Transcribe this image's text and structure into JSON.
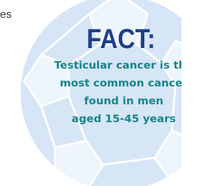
{
  "fragment": "es",
  "heading": "FACT:",
  "body": [
    "Testicular cancer is the",
    "most common cancer",
    "found in men",
    "aged 15-45 years"
  ]
}
